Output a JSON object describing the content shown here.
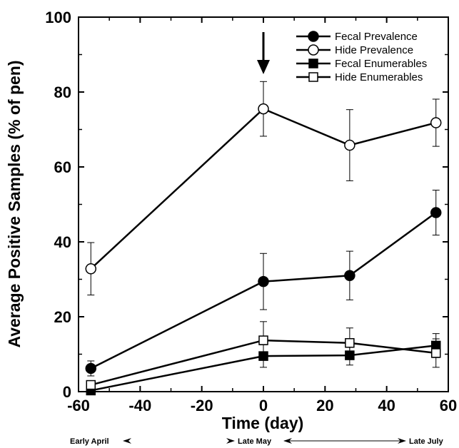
{
  "chart_data": {
    "type": "line",
    "title": "",
    "xlabel": "Time (day)",
    "ylabel": "Average Positive Samples (% of pen)",
    "xlim": [
      -60,
      60
    ],
    "ylim": [
      0,
      100
    ],
    "x_ticks": [
      -60,
      -40,
      -20,
      0,
      20,
      40,
      60
    ],
    "y_ticks": [
      0,
      20,
      40,
      60,
      80,
      100
    ],
    "legend_position": "top-right",
    "grid": false,
    "series": [
      {
        "name": "Fecal Prevalence",
        "marker": "filled-circle",
        "x": [
          -56,
          0,
          28,
          56
        ],
        "y": [
          6.2,
          29.4,
          31.0,
          47.8
        ],
        "err": [
          2.0,
          7.5,
          6.5,
          6.0
        ]
      },
      {
        "name": "Hide Prevalence",
        "marker": "open-circle",
        "x": [
          -56,
          0,
          28,
          56
        ],
        "y": [
          32.8,
          75.5,
          65.8,
          71.8
        ],
        "err": [
          7.0,
          7.3,
          9.5,
          6.3
        ]
      },
      {
        "name": "Fecal Enumerables",
        "marker": "filled-square",
        "x": [
          -56,
          0,
          28,
          56
        ],
        "y": [
          0.3,
          9.5,
          9.7,
          12.3
        ],
        "err": [
          0,
          3.0,
          2.6,
          3.2
        ]
      },
      {
        "name": "Hide Enumerables",
        "marker": "open-square",
        "x": [
          -56,
          0,
          28,
          56
        ],
        "y": [
          1.8,
          13.7,
          13.0,
          10.3
        ],
        "err": [
          1.0,
          5.0,
          4.0,
          3.8
        ]
      }
    ],
    "arrow_at_x": 0,
    "period_labels": {
      "early_april": "Early April",
      "late_may": "Late May",
      "late_july": "Late July"
    }
  }
}
